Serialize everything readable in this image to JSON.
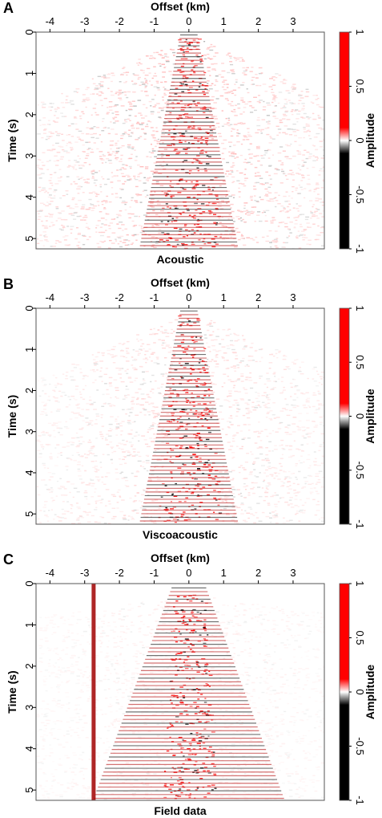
{
  "chart_data": [
    {
      "type": "heatmap",
      "panel_letter": "A",
      "title": "Acoustic",
      "xlabel": "Offset (km)",
      "ylabel": "Time (s)",
      "xlim": [
        -4.4,
        3.9
      ],
      "ylim": [
        0,
        5.25
      ],
      "xticks": [
        -4,
        -3,
        -2,
        -1,
        0,
        1,
        2,
        3
      ],
      "xtick_labels": [
        "-4",
        "-3",
        "-2",
        "-1",
        "0",
        "1",
        "2",
        "3"
      ],
      "yticks": [
        0,
        1,
        2,
        3,
        4,
        5
      ],
      "ytick_labels": [
        "0",
        "1",
        "2",
        "3",
        "4",
        "5"
      ],
      "colorbar": {
        "label": "Amplitude",
        "range": [
          -1,
          1
        ],
        "ticks": [
          1,
          0.5,
          0,
          -0.5,
          -1
        ],
        "tick_labels": [
          "1",
          "0.5",
          "0",
          "-0.5",
          "-1"
        ],
        "positive_color": "#ff0000",
        "negative_color": "#000000",
        "zero_color": "#ffffff"
      }
    },
    {
      "type": "heatmap",
      "panel_letter": "B",
      "title": "Viscoacoustic",
      "xlabel": "Offset (km)",
      "ylabel": "Time (s)",
      "xlim": [
        -4.4,
        3.9
      ],
      "ylim": [
        0,
        5.25
      ],
      "xticks": [
        -4,
        -3,
        -2,
        -1,
        0,
        1,
        2,
        3
      ],
      "xtick_labels": [
        "-4",
        "-3",
        "-2",
        "-1",
        "0",
        "1",
        "2",
        "3"
      ],
      "yticks": [
        0,
        1,
        2,
        3,
        4,
        5
      ],
      "ytick_labels": [
        "0",
        "1",
        "2",
        "3",
        "4",
        "5"
      ],
      "colorbar": {
        "label": "Amplitude",
        "range": [
          -1,
          1
        ],
        "ticks": [
          1,
          0.5,
          0,
          -0.5,
          -1
        ],
        "tick_labels": [
          "1",
          "0.5",
          "0",
          "-0.5",
          "-1"
        ],
        "positive_color": "#ff0000",
        "negative_color": "#000000",
        "zero_color": "#ffffff"
      }
    },
    {
      "type": "heatmap",
      "panel_letter": "C",
      "title": "Field data",
      "xlabel": "Offset (km)",
      "ylabel": "Time (s)",
      "xlim": [
        -4.4,
        3.9
      ],
      "ylim": [
        0,
        5.25
      ],
      "xticks": [
        -4,
        -3,
        -2,
        -1,
        0,
        1,
        2,
        3
      ],
      "xtick_labels": [
        "-4",
        "-3",
        "-2",
        "-1",
        "0",
        "1",
        "2",
        "3"
      ],
      "yticks": [
        0,
        1,
        2,
        3,
        4,
        5
      ],
      "ytick_labels": [
        "0",
        "1",
        "2",
        "3",
        "4",
        "5"
      ],
      "colorbar": {
        "label": "Amplitude",
        "range": [
          -1,
          1
        ],
        "ticks": [
          1,
          0.5,
          0,
          -0.5,
          -1
        ],
        "tick_labels": [
          "1",
          "0.5",
          "0",
          "-0.5",
          "-1"
        ],
        "positive_color": "#ff0000",
        "negative_color": "#000000",
        "zero_color": "#ffffff"
      }
    }
  ]
}
